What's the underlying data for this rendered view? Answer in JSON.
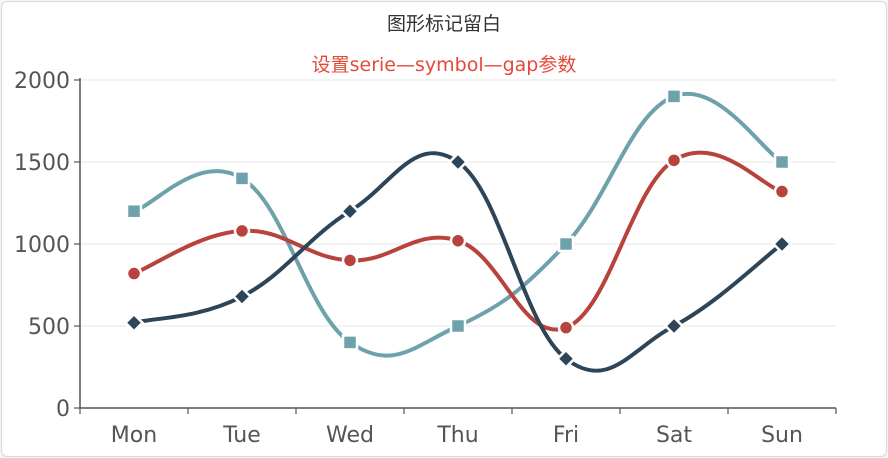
{
  "chart_data": {
    "type": "line",
    "title": "图形标记留白",
    "subtitle": "设置serie—symbol—gap参数",
    "categories": [
      "Mon",
      "Tue",
      "Wed",
      "Thu",
      "Fri",
      "Sat",
      "Sun"
    ],
    "ylim": [
      0,
      2000
    ],
    "yticks": [
      0,
      500,
      1000,
      1500,
      2000
    ],
    "grid": true,
    "smooth": true,
    "series": [
      {
        "color": "#6da2ab",
        "marker": "square",
        "values": [
          1200,
          1400,
          400,
          500,
          1000,
          1900,
          1500
        ]
      },
      {
        "color": "#b8433d",
        "marker": "circle",
        "values": [
          820,
          1080,
          900,
          1020,
          490,
          1510,
          1320
        ]
      },
      {
        "color": "#2e4457",
        "marker": "diamond",
        "values": [
          520,
          680,
          1200,
          1500,
          300,
          500,
          1000
        ]
      }
    ],
    "colors": {
      "subtitle": "#e6493a",
      "grid": "#e6e6e6",
      "axis": "#555555"
    }
  }
}
